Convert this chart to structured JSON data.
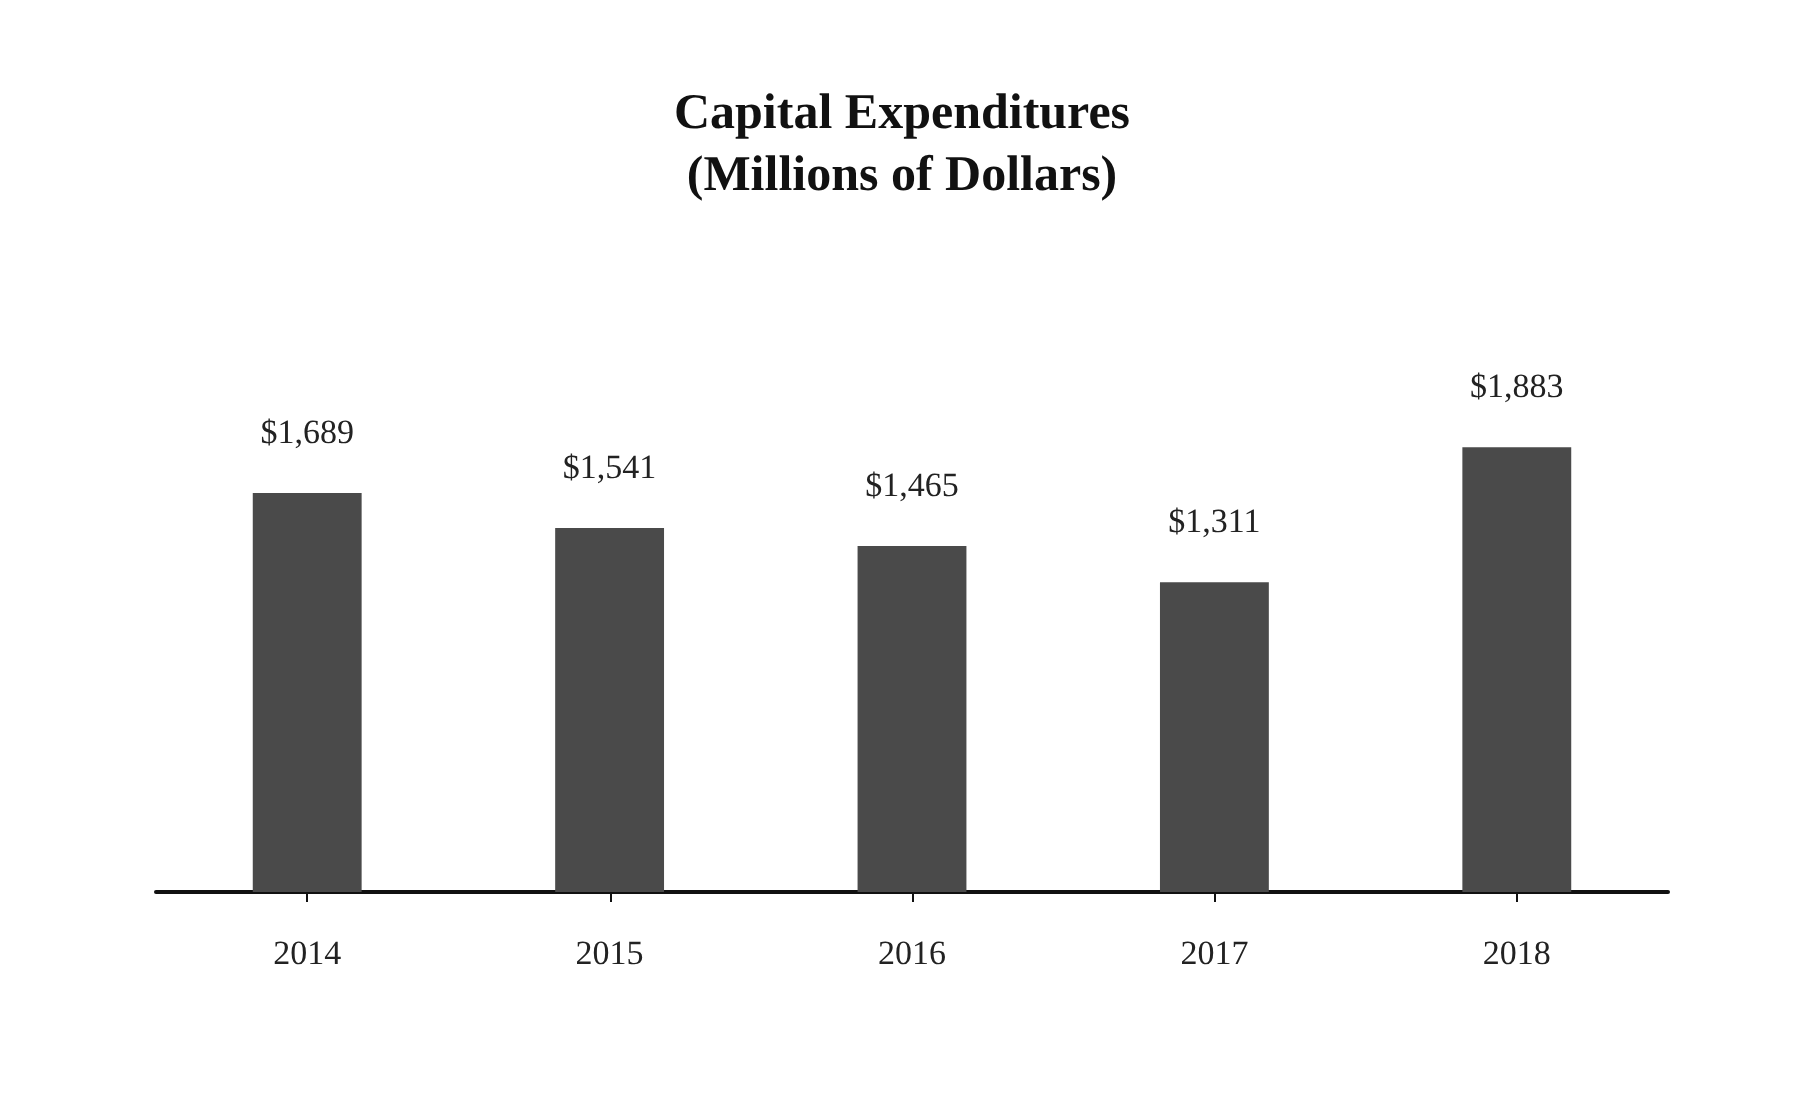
{
  "chart_data": {
    "type": "bar",
    "title": "Capital Expenditures\n(Millions of Dollars)",
    "categories": [
      "2014",
      "2015",
      "2016",
      "2017",
      "2018"
    ],
    "values": [
      1689,
      1541,
      1465,
      1311,
      1883
    ],
    "value_labels": [
      "$1,689",
      "$1,541",
      "$1,465",
      "$1,311",
      "$1,883"
    ],
    "color": "#4a4a4a",
    "tick_labels": "x"
  }
}
